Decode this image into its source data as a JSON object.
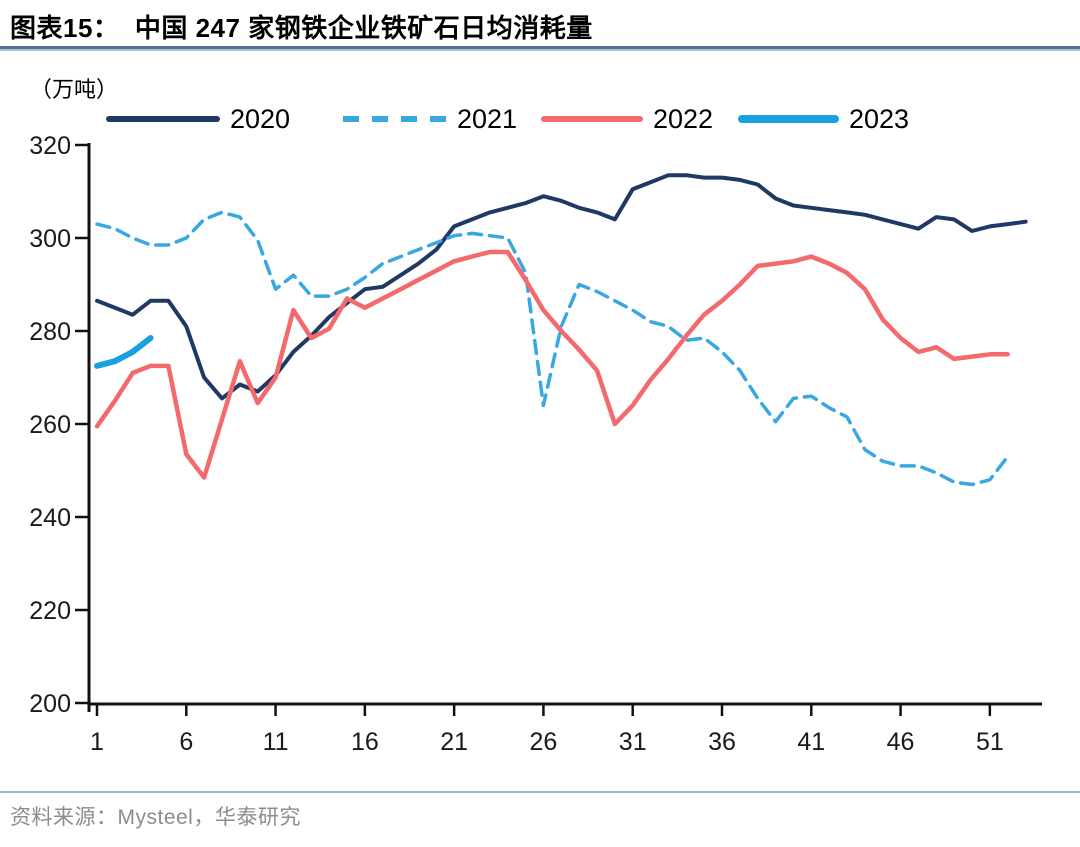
{
  "header": {
    "title": "图表15：  中国 247 家钢铁企业铁矿石日均消耗量"
  },
  "chart": {
    "unit_label": "（万吨）"
  },
  "source": {
    "text": "资料来源：Mysteel，华泰研究"
  },
  "chart_data": {
    "type": "line",
    "title": "中国 247 家钢铁企业铁矿石日均消耗量",
    "xlabel": "",
    "ylabel": "（万吨）",
    "x_unit": "week_of_year",
    "xlim": [
      1,
      53
    ],
    "x_ticks": [
      1,
      6,
      11,
      16,
      21,
      26,
      31,
      36,
      41,
      46,
      51
    ],
    "ylim": [
      200,
      320
    ],
    "y_ticks": [
      200,
      220,
      240,
      260,
      280,
      300,
      320
    ],
    "grid": false,
    "legend_position": "top",
    "axis_color": "#111111",
    "series": [
      {
        "name": "2020",
        "color": "#1f3864",
        "style": "solid",
        "width": 4,
        "x_start": 1,
        "values": [
          286.5,
          285,
          283.5,
          286.5,
          286.5,
          281,
          270,
          265.5,
          268.5,
          267,
          270.5,
          275.5,
          279,
          283,
          286,
          289,
          289.5,
          292,
          294.5,
          297.5,
          302.5,
          304,
          305.5,
          306.5,
          307.5,
          309,
          308,
          306.5,
          305.5,
          304,
          310.5,
          312,
          313.5,
          313.5,
          313,
          313,
          312.5,
          311.5,
          308.5,
          307,
          306.5,
          306,
          305.5,
          305,
          304,
          303,
          302,
          304.5,
          304,
          301.5,
          302.5,
          303,
          303.5
        ]
      },
      {
        "name": "2021",
        "color": "#38a8e2",
        "style": "dashed",
        "width": 3.5,
        "x_start": 1,
        "values": [
          303,
          302,
          300,
          298.5,
          298.5,
          300,
          304,
          305.5,
          304.5,
          299.5,
          289,
          292,
          287.5,
          287.5,
          289,
          291.5,
          294.5,
          296,
          297.5,
          299,
          300.5,
          301,
          300.5,
          300,
          292.5,
          264,
          281,
          290,
          288.5,
          286.5,
          284.5,
          282,
          281,
          278,
          278.5,
          275.5,
          271.5,
          265.5,
          260.5,
          265.5,
          266,
          263.5,
          261.5,
          254.5,
          252,
          251,
          251,
          249.5,
          247.5,
          247,
          248,
          253
        ]
      },
      {
        "name": "2022",
        "color": "#f4696c",
        "style": "solid",
        "width": 4.5,
        "x_start": 1,
        "values": [
          259.5,
          265,
          271,
          272.5,
          272.5,
          253.5,
          248.5,
          261,
          273.5,
          264.5,
          270,
          284.5,
          278.5,
          280.5,
          287,
          285,
          287,
          289,
          291,
          293,
          295,
          296,
          297,
          297,
          291,
          284.5,
          280,
          276,
          271.5,
          260,
          264,
          269.5,
          274,
          279,
          283.5,
          286.5,
          290,
          294,
          294.5,
          295,
          296,
          294.5,
          292.5,
          289,
          282.5,
          278.5,
          275.5,
          276.5,
          274,
          274.5,
          275,
          275
        ]
      },
      {
        "name": "2023",
        "color": "#18a0e0",
        "style": "solid",
        "width": 6,
        "x_start": 1,
        "values": [
          272.5,
          273.5,
          275.5,
          278.5
        ]
      }
    ]
  }
}
